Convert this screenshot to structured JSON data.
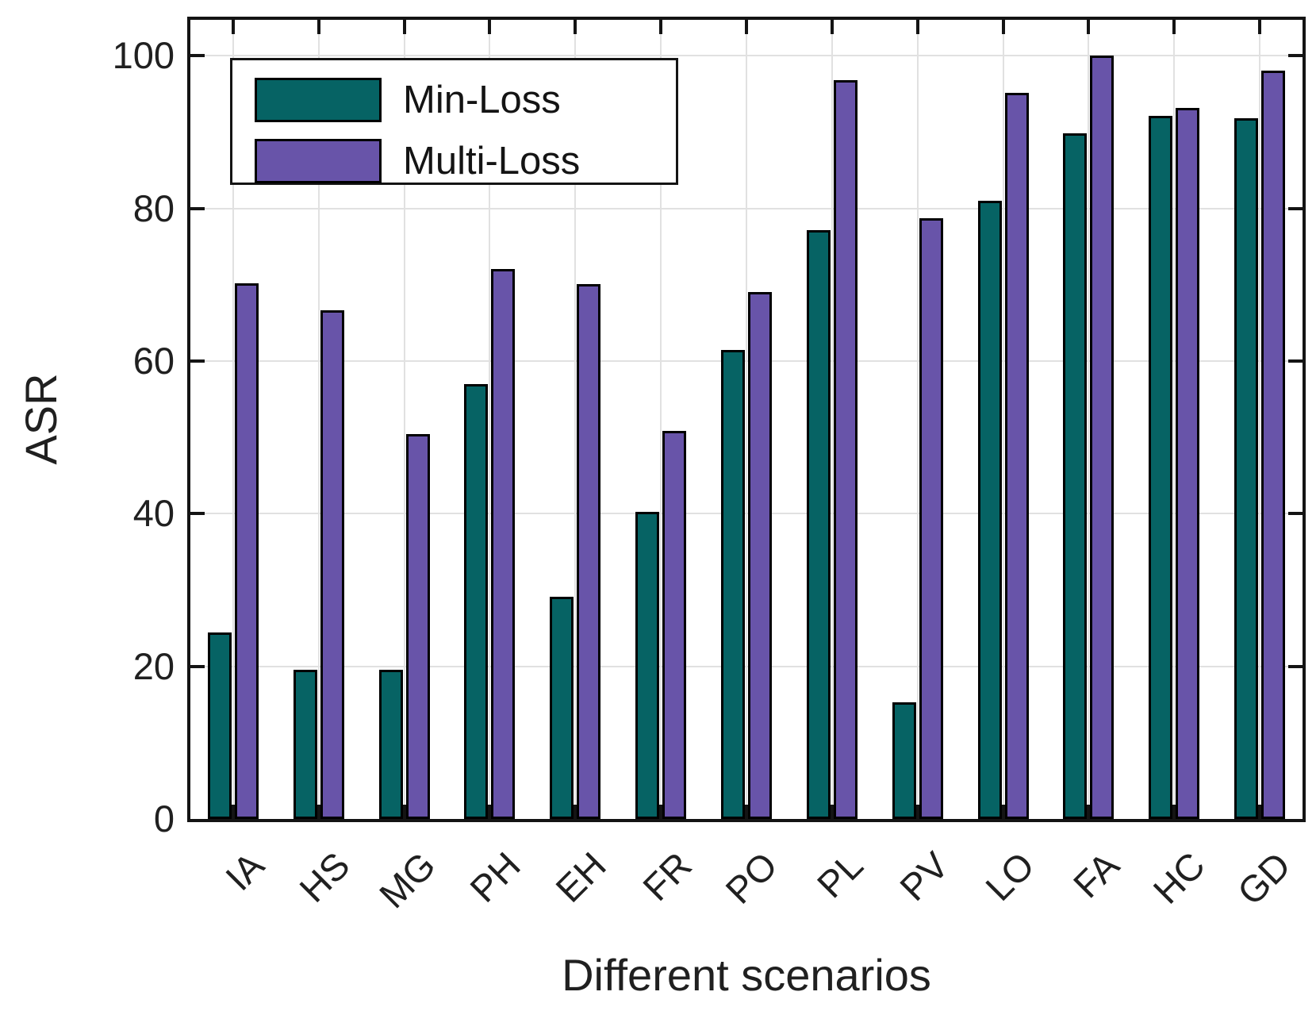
{
  "chart_data": {
    "type": "bar",
    "title": "",
    "xlabel": "Different scenarios",
    "ylabel": "ASR",
    "categories": [
      "IA",
      "HS",
      "MG",
      "PH",
      "EH",
      "FR",
      "PO",
      "PL",
      "PV",
      "LO",
      "FA",
      "HC",
      "GD"
    ],
    "series": [
      {
        "name": "Min-Loss",
        "color": "#066364",
        "values": [
          24.4,
          19.6,
          19.6,
          57.0,
          29.1,
          40.2,
          61.5,
          77.2,
          15.3,
          81.0,
          89.8,
          92.1,
          91.8
        ]
      },
      {
        "name": "Multi-Loss",
        "color": "#6854A9",
        "values": [
          70.2,
          66.6,
          50.4,
          72.1,
          70.1,
          50.8,
          69.0,
          96.8,
          78.7,
          95.1,
          100.0,
          93.2,
          98.0
        ]
      }
    ],
    "y_ticks": [
      0,
      20,
      40,
      60,
      80,
      100
    ],
    "ylim": [
      0,
      104.7
    ],
    "grid": true,
    "legend_position": "top-left",
    "colors": {
      "axis": "#141414",
      "grid": "#e1e1e1",
      "text": "#202020",
      "bar_edge": "#000000",
      "background": "#ffffff"
    }
  }
}
